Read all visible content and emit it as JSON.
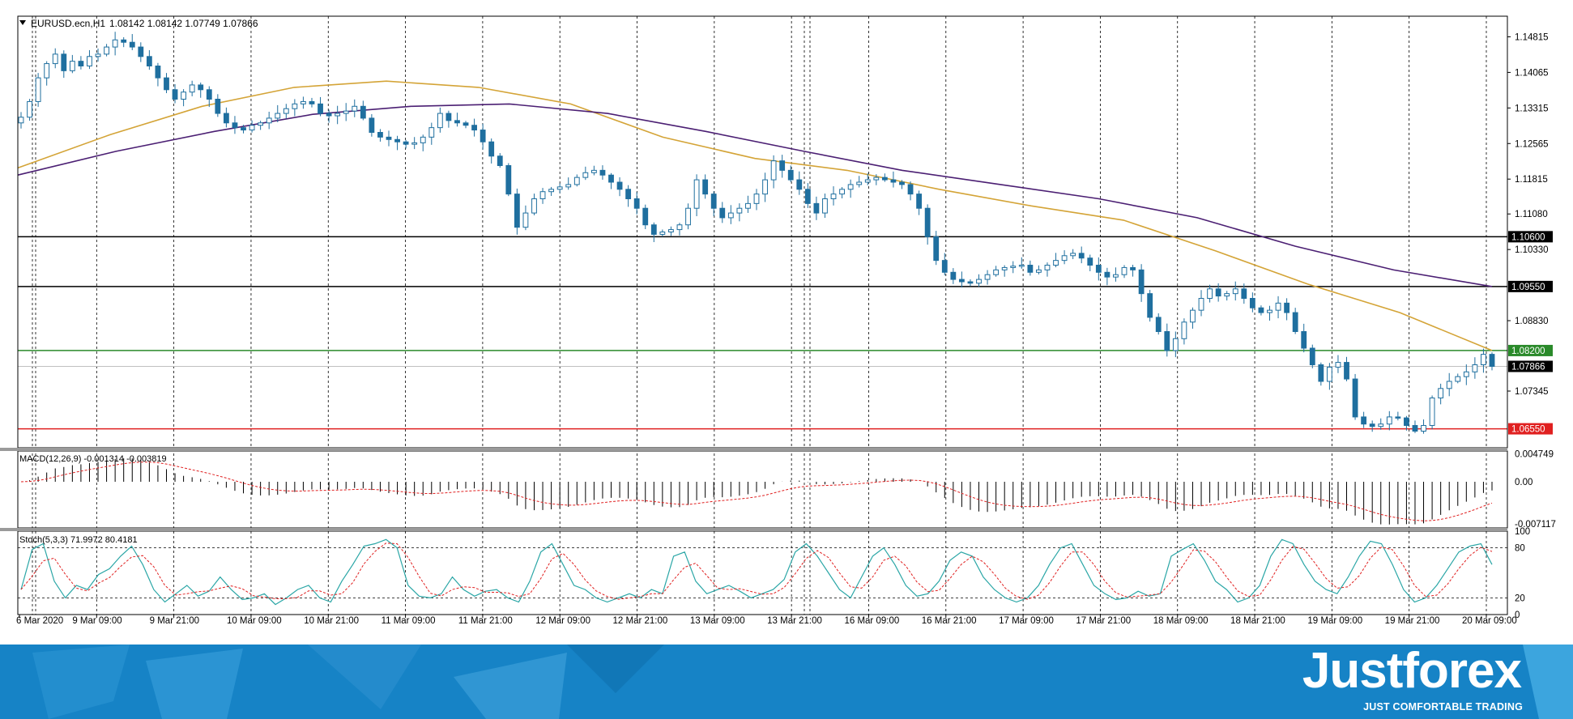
{
  "header": {
    "symbol": "EURUSD.ecn,H1",
    "ohlc": "1.08142 1.08142 1.07749 1.07866"
  },
  "colors": {
    "up_candle_fill": "#ffffff",
    "candle": "#1f6f9f",
    "ma_fast": "#d4a437",
    "ma_slow": "#4b1f73",
    "support_resistance": "#000000",
    "level_green": "#2a8a2a",
    "level_red": "#e02020",
    "macd_signal": "#e02020",
    "stoch_main": "#2aa6a6",
    "stoch_signal": "#e02020",
    "banner": "#1683c6"
  },
  "chart_data": [
    {
      "type": "candlestick",
      "title": "EURUSD.ecn,H1",
      "ylim": [
        1.0615,
        1.1525
      ],
      "price_ticks": [
        "1.14815",
        "1.14065",
        "1.13315",
        "1.12565",
        "1.11815",
        "1.11080",
        "1.10330",
        "1.08830",
        "1.07345"
      ],
      "levels": [
        {
          "value": 1.106,
          "label": "1.10600",
          "color": "#000000"
        },
        {
          "value": 1.0955,
          "label": "1.09550",
          "color": "#000000"
        },
        {
          "value": 1.082,
          "label": "1.08200",
          "color": "#2a8a2a"
        },
        {
          "value": 1.0655,
          "label": "1.06550",
          "color": "#e02020"
        }
      ],
      "current_price": {
        "value": 1.07866,
        "label": "1.07866"
      },
      "x_labels": [
        "6 Mar 2020",
        "9 Mar 09:00",
        "9 Mar 21:00",
        "10 Mar 09:00",
        "10 Mar 21:00",
        "11 Mar 09:00",
        "11 Mar 21:00",
        "12 Mar 09:00",
        "12 Mar 21:00",
        "13 Mar 09:00",
        "13 Mar 21:00",
        "16 Mar 09:00",
        "16 Mar 21:00",
        "17 Mar 09:00",
        "17 Mar 21:00",
        "18 Mar 09:00",
        "18 Mar 21:00",
        "19 Mar 09:00",
        "19 Mar 21:00",
        "20 Mar 09:00"
      ],
      "closes": [
        1.1312,
        1.1345,
        1.1395,
        1.1425,
        1.1445,
        1.141,
        1.143,
        1.142,
        1.144,
        1.1445,
        1.146,
        1.1475,
        1.147,
        1.146,
        1.144,
        1.142,
        1.1395,
        1.137,
        1.135,
        1.1365,
        1.138,
        1.137,
        1.135,
        1.132,
        1.13,
        1.129,
        1.1285,
        1.1295,
        1.13,
        1.131,
        1.132,
        1.133,
        1.134,
        1.1345,
        1.134,
        1.132,
        1.1315,
        1.132,
        1.1325,
        1.1335,
        1.131,
        1.128,
        1.127,
        1.1265,
        1.126,
        1.1255,
        1.1258,
        1.127,
        1.129,
        1.132,
        1.1305,
        1.13,
        1.1295,
        1.1285,
        1.126,
        1.123,
        1.121,
        1.115,
        1.108,
        1.111,
        1.114,
        1.1155,
        1.116,
        1.1165,
        1.117,
        1.1185,
        1.1195,
        1.12,
        1.119,
        1.1175,
        1.116,
        1.114,
        1.112,
        1.1085,
        1.1065,
        1.107,
        1.1075,
        1.1085,
        1.112,
        1.118,
        1.115,
        1.112,
        1.11,
        1.111,
        1.112,
        1.113,
        1.115,
        1.118,
        1.122,
        1.12,
        1.118,
        1.116,
        1.113,
        1.111,
        1.114,
        1.115,
        1.116,
        1.117,
        1.1175,
        1.118,
        1.1185,
        1.118,
        1.1175,
        1.117,
        1.115,
        1.112,
        1.106,
        1.101,
        1.0985,
        1.097,
        1.0965,
        1.0962,
        1.097,
        1.098,
        1.099,
        1.0995,
        1.0998,
        1.1,
        1.0985,
        1.099,
        1.1,
        1.101,
        1.102,
        1.1025,
        1.1015,
        1.1,
        1.0985,
        1.0975,
        1.098,
        1.0995,
        1.099,
        1.094,
        1.089,
        1.086,
        1.082,
        1.0845,
        1.088,
        1.0905,
        1.093,
        1.095,
        1.0935,
        1.094,
        1.095,
        1.093,
        1.091,
        1.09,
        1.0905,
        1.092,
        1.09,
        1.086,
        1.0825,
        1.079,
        1.0755,
        1.0785,
        1.0795,
        1.076,
        1.068,
        1.0665,
        1.066,
        1.0665,
        1.068,
        1.0678,
        1.0662,
        1.065,
        1.0662,
        1.072,
        1.074,
        1.0755,
        1.0765,
        1.0775,
        1.079,
        1.0812,
        1.07866
      ],
      "ma_fast_closes": [
        1.1205,
        1.1275,
        1.1335,
        1.1375,
        1.1388,
        1.1375,
        1.134,
        1.127,
        1.1225,
        1.12,
        1.116,
        1.1125,
        1.1095,
        1.103,
        1.096,
        1.09,
        1.082
      ],
      "ma_slow_closes": [
        1.119,
        1.124,
        1.1282,
        1.1318,
        1.1335,
        1.134,
        1.132,
        1.1282,
        1.124,
        1.12,
        1.117,
        1.114,
        1.11,
        1.104,
        1.099,
        1.0955
      ]
    },
    {
      "type": "bar",
      "title": "MACD(12,26,9) -0.001314 -0.003819",
      "ylim": [
        -0.0078,
        0.0052
      ],
      "y_ticks": [
        "0.004749",
        "0.00",
        "-0.007117"
      ]
    },
    {
      "type": "line",
      "title": "Stoch(5,3,3) 71.9972 80.4181",
      "ylim": [
        0,
        100
      ],
      "y_ticks": [
        "100",
        "80",
        "20",
        "0"
      ],
      "series": [
        {
          "name": "main",
          "values": [
            30,
            78,
            85,
            40,
            20,
            35,
            30,
            48,
            55,
            70,
            82,
            60,
            30,
            15,
            25,
            35,
            22,
            28,
            45,
            30,
            18,
            20,
            25,
            12,
            20,
            30,
            35,
            20,
            15,
            40,
            60,
            82,
            85,
            90,
            80,
            35,
            22,
            20,
            25,
            45,
            30,
            22,
            28,
            30,
            20,
            15,
            40,
            75,
            85,
            60,
            35,
            30,
            20,
            15,
            20,
            25,
            20,
            30,
            25,
            70,
            75,
            40,
            25,
            30,
            35,
            28,
            20,
            25,
            30,
            42,
            75,
            85,
            70,
            50,
            30,
            20,
            45,
            70,
            80,
            60,
            35,
            22,
            25,
            40,
            65,
            75,
            70,
            45,
            30,
            20,
            15,
            20,
            35,
            60,
            80,
            85,
            60,
            35,
            25,
            18,
            20,
            28,
            22,
            25,
            70,
            78,
            85,
            65,
            40,
            30,
            15,
            20,
            35,
            70,
            90,
            85,
            60,
            40,
            30,
            25,
            45,
            70,
            88,
            85,
            60,
            30,
            15,
            20,
            35,
            55,
            75,
            82,
            85,
            60
          ]
        }
      ]
    }
  ],
  "branding": {
    "logo": "Justforex",
    "slogan": "JUST COMFORTABLE TRADING"
  }
}
